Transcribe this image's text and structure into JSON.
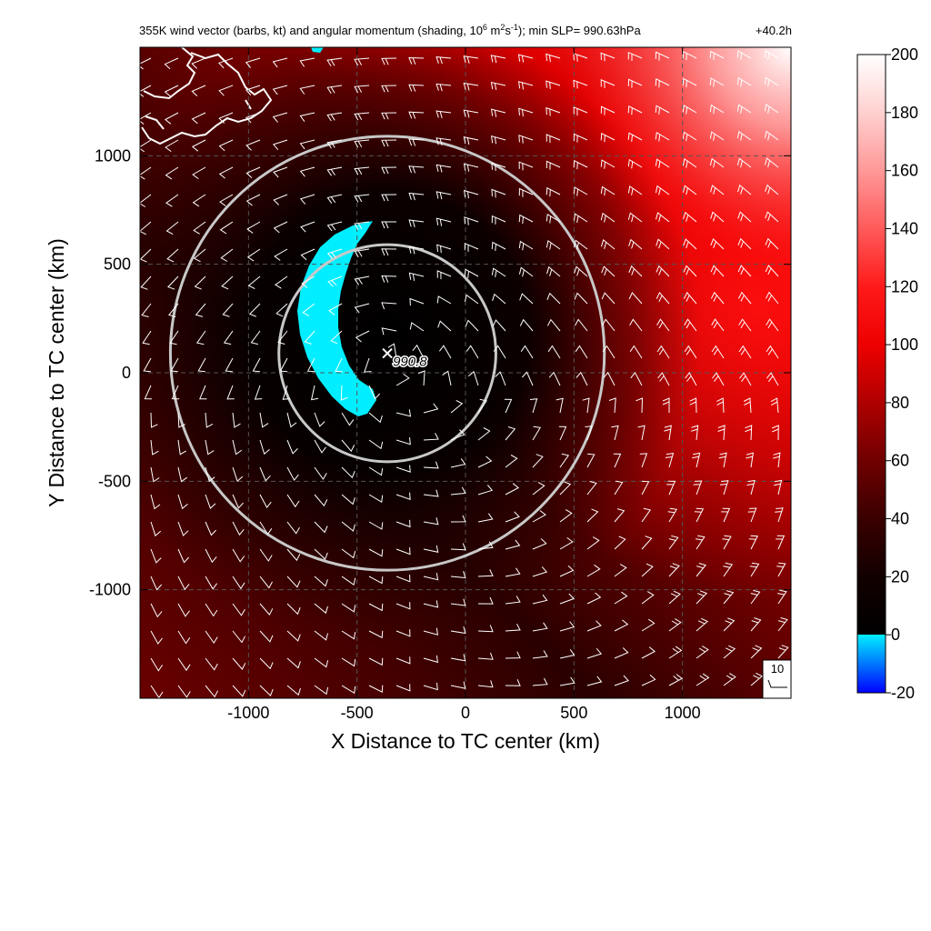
{
  "chart_data": {
    "type": "heatmap",
    "title_main": "355K wind vector (barbs, kt) and angular momentum (shading, 10",
    "title_exp1": "6",
    "title_unit": " m",
    "title_exp2": "2",
    "title_unit2": "s",
    "title_exp3": "-1",
    "title_tail": "); min SLP= 990.63hPa",
    "time_label": "+40.2h",
    "xlabel": "X Distance to TC center (km)",
    "ylabel": "Y Distance to TC center (km)",
    "xlim": [
      -1500,
      1500
    ],
    "ylim": [
      -1500,
      1500
    ],
    "x_ticks": [
      -1000,
      -500,
      0,
      500,
      1000
    ],
    "y_ticks": [
      -1000,
      -500,
      0,
      500,
      1000
    ],
    "x_tick_labels": [
      "-1000",
      "-500",
      "0",
      "500",
      "1000"
    ],
    "y_tick_labels": [
      "-1000",
      "-500",
      "0",
      "500",
      "1000"
    ],
    "grid": "dashed",
    "colorbar": {
      "ticks": [
        200,
        180,
        160,
        140,
        120,
        100,
        80,
        60,
        40,
        20,
        0,
        -20
      ],
      "tick_labels": [
        "200",
        "180",
        "160",
        "140",
        "120",
        "100",
        "80",
        "60",
        "40",
        "20",
        "0",
        "-20"
      ],
      "range": [
        -20,
        200
      ],
      "stops": [
        {
          "v": -20,
          "color": "#0000ff"
        },
        {
          "v": 0,
          "color": "#00eeff"
        },
        {
          "v": 0.01,
          "color": "#000000"
        },
        {
          "v": 20,
          "color": "#120000"
        },
        {
          "v": 40,
          "color": "#3a0000"
        },
        {
          "v": 60,
          "color": "#700000"
        },
        {
          "v": 80,
          "color": "#b00000"
        },
        {
          "v": 100,
          "color": "#ee0000"
        },
        {
          "v": 120,
          "color": "#ff1a1a"
        },
        {
          "v": 140,
          "color": "#ff5a5a"
        },
        {
          "v": 160,
          "color": "#ff9898"
        },
        {
          "v": 180,
          "color": "#ffd0d0"
        },
        {
          "v": 200,
          "color": "#ffffff"
        }
      ]
    },
    "center_marker": {
      "x": -360,
      "y": 90,
      "label": "990.8"
    },
    "range_rings_km": [
      500,
      1000
    ],
    "reference_barb": {
      "label": "10",
      "units": "kt"
    },
    "negative_region": "cyan crescent west of center (values below 0)"
  },
  "colors": {
    "ring": "#c8c8c8",
    "barb": "#ffffff",
    "coast": "#ffffff",
    "negative": "#00eeff"
  }
}
